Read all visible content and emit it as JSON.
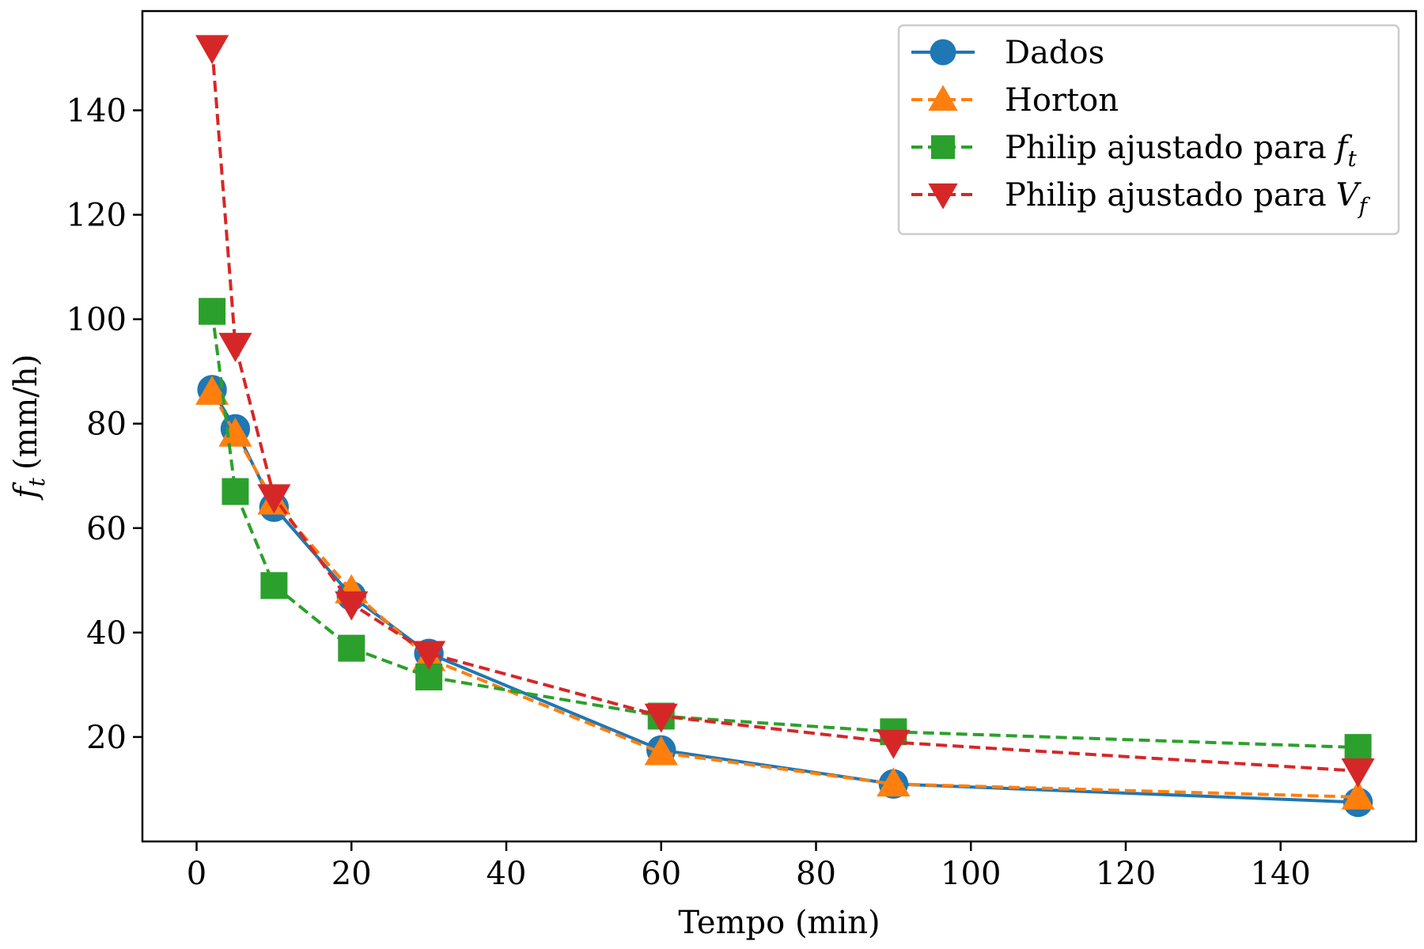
{
  "chart_data": {
    "type": "line",
    "xlabel": "Tempo (min)",
    "ylabel": {
      "symbol": "f",
      "subscript": "t",
      "unit": "(mm/h)"
    },
    "xlim": [
      -7,
      157.5
    ],
    "ylim": [
      0,
      159
    ],
    "xticks": [
      0,
      20,
      40,
      60,
      80,
      100,
      120,
      140
    ],
    "yticks": [
      20,
      40,
      60,
      80,
      100,
      120,
      140
    ],
    "grid": false,
    "legend_position": "top-right",
    "x": [
      2,
      5,
      10,
      20,
      30,
      60,
      90,
      150
    ],
    "series": [
      {
        "name": "Dados",
        "color": "#1f77b4",
        "marker": "circle",
        "linestyle": "solid",
        "values": [
          86.5,
          79,
          64,
          47,
          36,
          17.5,
          11,
          7.5
        ]
      },
      {
        "name": "Horton",
        "color": "#ff7f0e",
        "marker": "triangle-up",
        "linestyle": "dashed",
        "values": [
          86,
          78,
          65,
          48,
          35,
          17,
          11,
          8.5
        ]
      },
      {
        "name": "Philip ajustado para",
        "name_symbol": "f",
        "name_subscript": "t",
        "color": "#2ca02c",
        "marker": "square",
        "linestyle": "dashed",
        "values": [
          101.5,
          67,
          49,
          37,
          31.5,
          24,
          21,
          18
        ]
      },
      {
        "name": "Philip ajustado para",
        "name_symbol": "V",
        "name_subscript": "f",
        "color": "#d62728",
        "marker": "triangle-down",
        "linestyle": "dashed",
        "values": [
          152,
          95,
          66,
          45.5,
          36,
          24,
          19,
          13.5
        ]
      }
    ]
  }
}
